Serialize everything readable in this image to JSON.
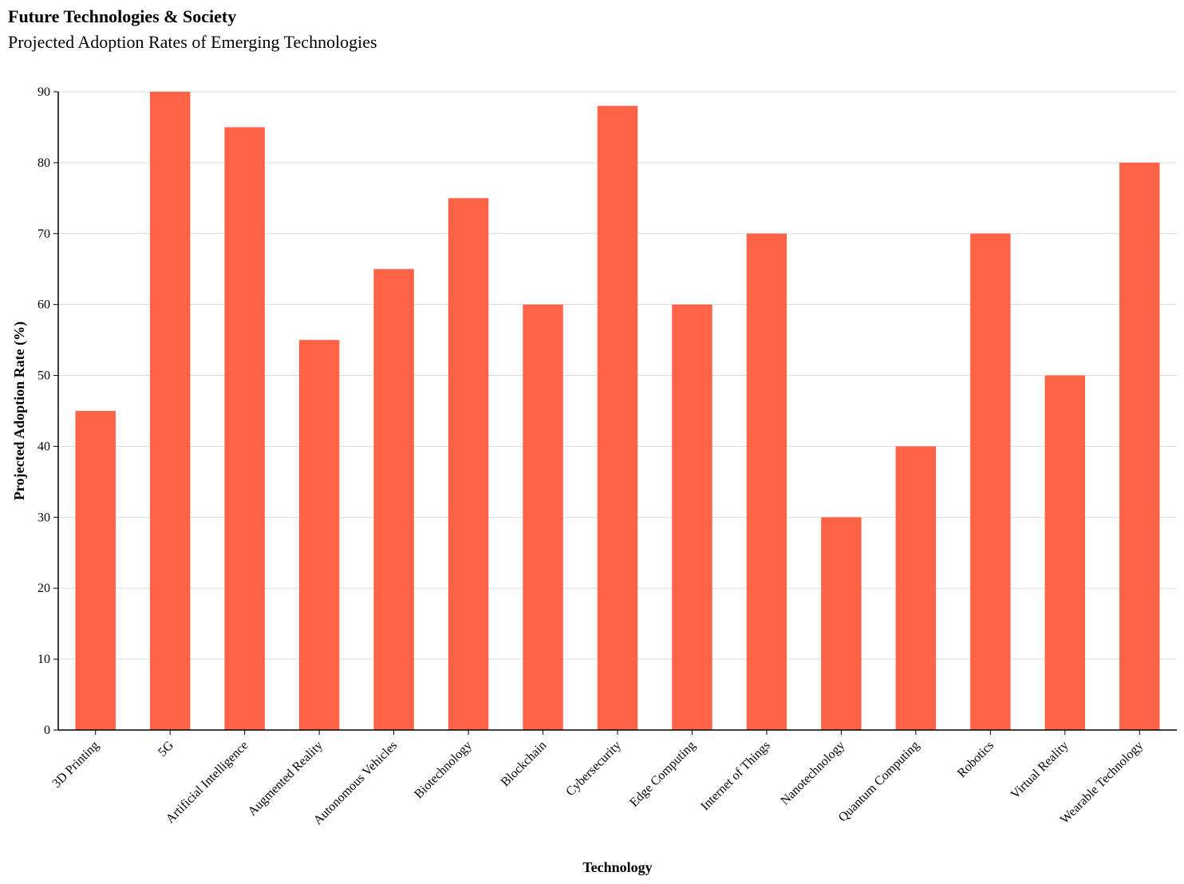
{
  "title": "Future Technologies & Society",
  "subtitle": "Projected Adoption Rates of Emerging Technologies",
  "chart_data": {
    "type": "bar",
    "title": "Future Technologies & Society",
    "subtitle": "Projected Adoption Rates of Emerging Technologies",
    "xlabel": "Technology",
    "ylabel": "Projected Adoption Rate (%)",
    "categories": [
      "3D Printing",
      "5G",
      "Artificial Intelligence",
      "Augmented Reality",
      "Autonomous Vehicles",
      "Biotechnology",
      "Blockchain",
      "Cybersecurity",
      "Edge Computing",
      "Internet of Things",
      "Nanotechnology",
      "Quantum Computing",
      "Robotics",
      "Virtual Reality",
      "Wearable Technology"
    ],
    "values": [
      45,
      90,
      85,
      55,
      65,
      75,
      60,
      88,
      60,
      70,
      30,
      40,
      70,
      50,
      80
    ],
    "ylim": [
      0,
      90
    ],
    "yticks": [
      0,
      10,
      20,
      30,
      40,
      50,
      60,
      70,
      80,
      90
    ],
    "grid": true,
    "bar_color": "#FF6347"
  }
}
